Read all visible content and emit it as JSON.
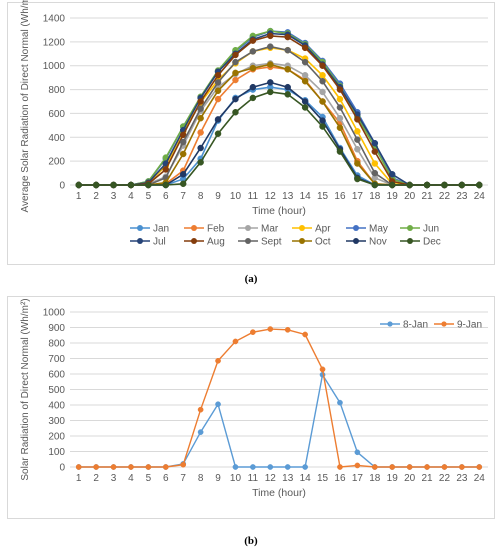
{
  "captions": {
    "a": "(a)",
    "b": "(b)"
  },
  "chart_data": [
    {
      "type": "line",
      "title": "",
      "xlabel": "Time (hour)",
      "ylabel": "Average Solar Radiation of Direct Normal (Wh/m²)",
      "ylim": [
        0,
        1400
      ],
      "yticks": [
        0,
        200,
        400,
        600,
        800,
        1000,
        1200,
        1400
      ],
      "x": [
        1,
        2,
        3,
        4,
        5,
        6,
        7,
        8,
        9,
        10,
        11,
        12,
        13,
        14,
        15,
        16,
        17,
        18,
        19,
        20,
        21,
        22,
        23,
        24
      ],
      "grid": "horizontal",
      "legend_position": "bottom",
      "series": [
        {
          "name": "Jan",
          "color": "#4a90d0",
          "values": [
            0,
            0,
            0,
            0,
            0,
            0,
            50,
            220,
            540,
            730,
            800,
            820,
            800,
            710,
            570,
            310,
            80,
            0,
            0,
            0,
            0,
            0,
            0,
            0
          ]
        },
        {
          "name": "Feb",
          "color": "#ed7d31",
          "values": [
            0,
            0,
            0,
            0,
            0,
            10,
            120,
            440,
            720,
            880,
            970,
            990,
            970,
            880,
            700,
            520,
            200,
            10,
            0,
            0,
            0,
            0,
            0,
            0
          ]
        },
        {
          "name": "Mar",
          "color": "#a5a5a5",
          "values": [
            0,
            0,
            0,
            0,
            10,
            70,
            330,
            620,
            820,
            930,
            1000,
            1020,
            1000,
            920,
            780,
            560,
            300,
            60,
            0,
            0,
            0,
            0,
            0,
            0
          ]
        },
        {
          "name": "Apr",
          "color": "#ffc000",
          "values": [
            0,
            0,
            0,
            0,
            20,
            160,
            450,
            690,
            880,
            1020,
            1120,
            1150,
            1130,
            1060,
            920,
            720,
            450,
            180,
            10,
            0,
            0,
            0,
            0,
            0
          ]
        },
        {
          "name": "May",
          "color": "#4472c4",
          "values": [
            0,
            0,
            0,
            0,
            30,
            220,
            490,
            730,
            950,
            1120,
            1240,
            1290,
            1280,
            1190,
            1040,
            850,
            610,
            350,
            60,
            0,
            0,
            0,
            0,
            0
          ]
        },
        {
          "name": "Jun",
          "color": "#70ad47",
          "values": [
            0,
            0,
            0,
            0,
            30,
            230,
            490,
            740,
            960,
            1130,
            1250,
            1290,
            1270,
            1180,
            1030,
            830,
            570,
            320,
            50,
            0,
            0,
            0,
            0,
            0
          ]
        },
        {
          "name": "Jul",
          "color": "#264478",
          "values": [
            0,
            0,
            0,
            0,
            20,
            180,
            460,
            730,
            950,
            1100,
            1220,
            1270,
            1260,
            1170,
            1010,
            820,
            590,
            350,
            90,
            0,
            0,
            0,
            0,
            0
          ]
        },
        {
          "name": "Aug",
          "color": "#843c0c",
          "values": [
            0,
            0,
            0,
            0,
            10,
            130,
            420,
            700,
            920,
            1090,
            1210,
            1250,
            1240,
            1150,
            1000,
            800,
            550,
            280,
            30,
            0,
            0,
            0,
            0,
            0
          ]
        },
        {
          "name": "Sept",
          "color": "#636363",
          "values": [
            0,
            0,
            0,
            0,
            0,
            60,
            360,
            640,
            860,
            1030,
            1120,
            1160,
            1130,
            1030,
            870,
            650,
            380,
            100,
            0,
            0,
            0,
            0,
            0,
            0
          ]
        },
        {
          "name": "Oct",
          "color": "#997300",
          "values": [
            0,
            0,
            0,
            0,
            0,
            20,
            260,
            560,
            790,
            940,
            980,
            1010,
            970,
            870,
            700,
            480,
            180,
            10,
            0,
            0,
            0,
            0,
            0,
            0
          ]
        },
        {
          "name": "Nov",
          "color": "#203864",
          "values": [
            0,
            0,
            0,
            0,
            0,
            0,
            90,
            310,
            550,
            720,
            820,
            860,
            820,
            700,
            540,
            300,
            60,
            0,
            0,
            0,
            0,
            0,
            0,
            0
          ]
        },
        {
          "name": "Dec",
          "color": "#375623",
          "values": [
            0,
            0,
            0,
            0,
            0,
            0,
            10,
            190,
            430,
            610,
            730,
            780,
            760,
            650,
            490,
            280,
            50,
            0,
            0,
            0,
            0,
            0,
            0,
            0
          ]
        }
      ]
    },
    {
      "type": "line",
      "title": "",
      "xlabel": "Time (hour)",
      "ylabel": "Solar Radiation of Direct Normal (Wh/m²)",
      "ylim": [
        0,
        1000
      ],
      "yticks": [
        0,
        100,
        200,
        300,
        400,
        500,
        600,
        700,
        800,
        900,
        1000
      ],
      "x": [
        1,
        2,
        3,
        4,
        5,
        6,
        7,
        8,
        9,
        10,
        11,
        12,
        13,
        14,
        15,
        16,
        17,
        18,
        19,
        20,
        21,
        22,
        23,
        24
      ],
      "grid": "horizontal",
      "legend_position": "top-right",
      "series": [
        {
          "name": "8-Jan",
          "color": "#5b9bd5",
          "values": [
            0,
            0,
            0,
            0,
            0,
            0,
            20,
            225,
            405,
            0,
            0,
            0,
            0,
            0,
            595,
            415,
            95,
            0,
            0,
            0,
            0,
            0,
            0,
            0
          ]
        },
        {
          "name": "9-Jan",
          "color": "#ed7d31",
          "values": [
            0,
            0,
            0,
            0,
            0,
            0,
            15,
            370,
            685,
            810,
            870,
            890,
            885,
            855,
            630,
            0,
            10,
            0,
            0,
            0,
            0,
            0,
            0,
            0
          ]
        }
      ]
    }
  ]
}
